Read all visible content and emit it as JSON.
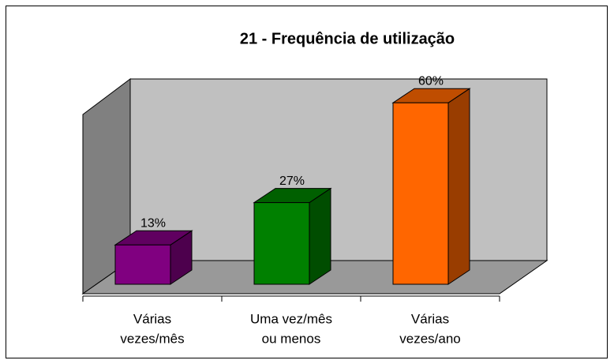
{
  "chart_data": {
    "type": "bar3d",
    "title": "21 - Frequência de utilização",
    "categories": [
      [
        "Várias",
        "vezes/mês"
      ],
      [
        "Uma vez/mês",
        "ou menos"
      ],
      [
        "Várias",
        "vezes/ano"
      ]
    ],
    "values": [
      13,
      27,
      60
    ],
    "value_labels": [
      "13%",
      "27%",
      "60%"
    ],
    "colors": [
      "#800080",
      "#008000",
      "#ff6600"
    ]
  }
}
